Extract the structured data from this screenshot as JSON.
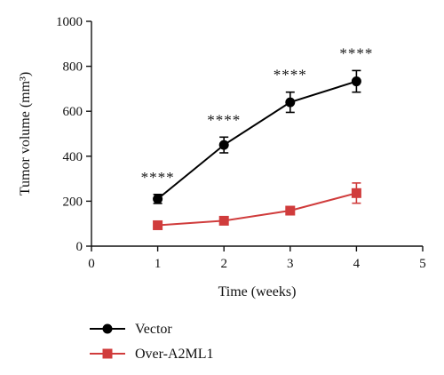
{
  "chart_data": {
    "type": "line",
    "xlabel": "Time (weeks)",
    "ylabel": "Tumor volume (mm³)",
    "xlim": [
      0,
      5
    ],
    "ylim": [
      0,
      1000
    ],
    "xticks": [
      0,
      1,
      2,
      3,
      4,
      5
    ],
    "yticks": [
      0,
      200,
      400,
      600,
      800,
      1000
    ],
    "grid": false,
    "legend_position": "bottom-left",
    "series": [
      {
        "name": "Vector",
        "color": "#000000",
        "marker": "circle",
        "x": [
          1,
          2,
          3,
          4
        ],
        "y": [
          210,
          450,
          640,
          733
        ],
        "error": [
          20,
          35,
          45,
          48
        ]
      },
      {
        "name": "Over-A2ML1",
        "color": "#d03c3c",
        "marker": "square",
        "x": [
          1,
          2,
          3,
          4
        ],
        "y": [
          93,
          113,
          158,
          236
        ],
        "error": [
          8,
          10,
          12,
          45
        ]
      }
    ],
    "annotations": [
      {
        "x": 1,
        "text": "****"
      },
      {
        "x": 2,
        "text": "****"
      },
      {
        "x": 3,
        "text": "****"
      },
      {
        "x": 4,
        "text": "****"
      }
    ]
  }
}
